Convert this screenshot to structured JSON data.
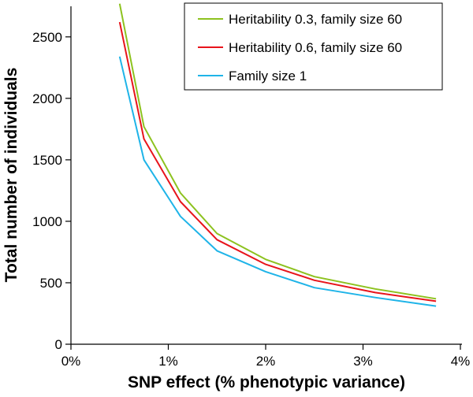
{
  "chart_data": {
    "type": "line",
    "title": "",
    "xlabel": "SNP effect (% phenotypic variance)",
    "ylabel": "Total number of individuals",
    "xlim": [
      0,
      4
    ],
    "ylim": [
      0,
      2800
    ],
    "x_ticks": [
      0,
      1,
      2,
      3,
      4
    ],
    "x_tick_labels": [
      "0%",
      "1%",
      "2%",
      "3%",
      "4%"
    ],
    "y_ticks": [
      0,
      500,
      1000,
      1500,
      2000,
      2500
    ],
    "y_tick_labels": [
      "0",
      "500",
      "1000",
      "1500",
      "2000",
      "2500"
    ],
    "grid": false,
    "legend_position": "top-right",
    "series": [
      {
        "name": "Heritability 0.3, family size 60",
        "color": "#8dc21f",
        "x": [
          0.5,
          0.75,
          1.125,
          1.5,
          2.0,
          2.5,
          3.125,
          3.75
        ],
        "y": [
          2770,
          1770,
          1230,
          900,
          690,
          550,
          450,
          370
        ]
      },
      {
        "name": "Heritability 0.6, family size 60",
        "color": "#e8141b",
        "x": [
          0.5,
          0.75,
          1.125,
          1.5,
          2.0,
          2.5,
          3.125,
          3.75
        ],
        "y": [
          2620,
          1670,
          1160,
          850,
          650,
          520,
          420,
          350
        ]
      },
      {
        "name": "Family size 1",
        "color": "#1fb4e8",
        "x": [
          0.5,
          0.75,
          1.125,
          1.5,
          2.0,
          2.5,
          3.125,
          3.75
        ],
        "y": [
          2340,
          1500,
          1040,
          760,
          590,
          460,
          380,
          310
        ]
      }
    ]
  }
}
